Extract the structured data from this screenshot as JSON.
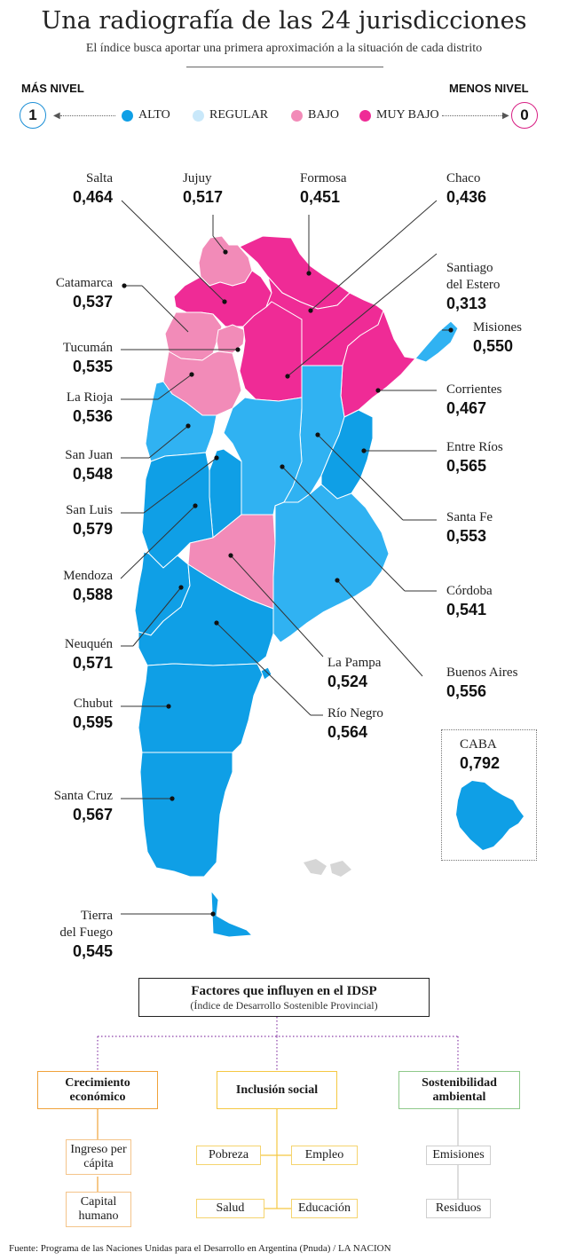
{
  "header": {
    "title": "Una radiografía de las 24 jurisdicciones",
    "subtitle": "El índice busca aportar una primera aproximación a la situación de cada distrito"
  },
  "scale": {
    "left_label": "MÁS NIVEL",
    "left_value": "1",
    "right_label": "MENOS NIVEL",
    "right_value": "0"
  },
  "legend": [
    {
      "label": "ALTO",
      "color": "#0f9fe6"
    },
    {
      "label": "REGULAR",
      "color": "#c9e8fa"
    },
    {
      "label": "BAJO",
      "color": "#f28bb8"
    },
    {
      "label": "MUY BAJO",
      "color": "#ef2b96"
    }
  ],
  "colors": {
    "alto": "#0f9fe6",
    "regular": "#30b2f2",
    "bajo": "#f28bb8",
    "muy_bajo": "#ef2b96",
    "accent_blue": "#1c8fd6",
    "accent_pink": "#d81e83"
  },
  "provinces": [
    {
      "name": "Salta",
      "value": "0,464",
      "level": "MUY BAJO"
    },
    {
      "name": "Jujuy",
      "value": "0,517",
      "level": "BAJO"
    },
    {
      "name": "Formosa",
      "value": "0,451",
      "level": "MUY BAJO"
    },
    {
      "name": "Chaco",
      "value": "0,436",
      "level": "MUY BAJO"
    },
    {
      "name": "Santiago\ndel Estero",
      "value": "0,313",
      "level": "MUY BAJO"
    },
    {
      "name": "Catamarca",
      "value": "0,537",
      "level": "BAJO"
    },
    {
      "name": "Misiones",
      "value": "0,550",
      "level": "REGULAR"
    },
    {
      "name": "Tucumán",
      "value": "0,535",
      "level": "BAJO"
    },
    {
      "name": "Corrientes",
      "value": "0,467",
      "level": "MUY BAJO"
    },
    {
      "name": "La Rioja",
      "value": "0,536",
      "level": "BAJO"
    },
    {
      "name": "Entre Ríos",
      "value": "0,565",
      "level": "ALTO"
    },
    {
      "name": "San Juan",
      "value": "0,548",
      "level": "REGULAR"
    },
    {
      "name": "Santa Fe",
      "value": "0,553",
      "level": "REGULAR"
    },
    {
      "name": "San Luis",
      "value": "0,579",
      "level": "ALTO"
    },
    {
      "name": "Mendoza",
      "value": "0,588",
      "level": "ALTO"
    },
    {
      "name": "Córdoba",
      "value": "0,541",
      "level": "REGULAR"
    },
    {
      "name": "Neuquén",
      "value": "0,571",
      "level": "ALTO"
    },
    {
      "name": "La Pampa",
      "value": "0,524",
      "level": "BAJO"
    },
    {
      "name": "Buenos Aires",
      "value": "0,556",
      "level": "REGULAR"
    },
    {
      "name": "Chubut",
      "value": "0,595",
      "level": "ALTO"
    },
    {
      "name": "Río Negro",
      "value": "0,564",
      "level": "ALTO"
    },
    {
      "name": "CABA",
      "value": "0,792",
      "level": "ALTO"
    },
    {
      "name": "Santa Cruz",
      "value": "0,567",
      "level": "ALTO"
    },
    {
      "name": "Tierra\ndel Fuego",
      "value": "0,545",
      "level": "ALTO"
    }
  ],
  "factors": {
    "title": "Factores que influyen en el IDSP",
    "subtitle": "(Índice de Desarrollo Sostenible Provincial)",
    "categories": [
      {
        "label": "Crecimiento económico",
        "color": "#f0a23a",
        "items": [
          "Ingreso per cápita",
          "Capital humano"
        ]
      },
      {
        "label": "Inclusión social",
        "color": "#f5c842",
        "items": [
          "Pobreza",
          "Empleo",
          "Salud",
          "Educación"
        ]
      },
      {
        "label": "Sostenibilidad ambiental",
        "color": "#8ec98a",
        "items": [
          "Emisiones",
          "Residuos"
        ]
      }
    ]
  },
  "source": "Fuente: Programa de las Naciones Unidas para el Desarrollo en Argentina (Pnuda) / LA NACION"
}
